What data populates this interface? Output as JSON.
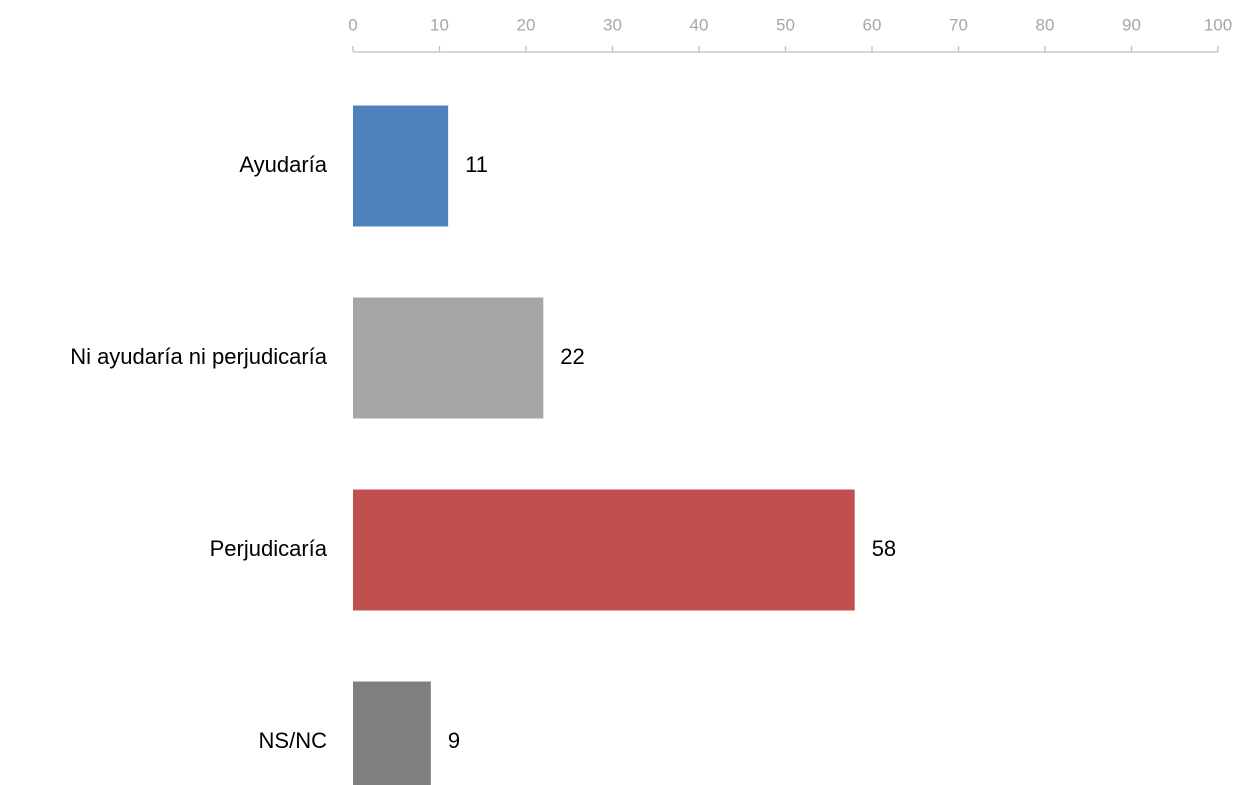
{
  "chart_data": {
    "type": "bar",
    "orientation": "horizontal",
    "categories": [
      "Ayudaría",
      "Ni ayudaría ni perjudicaría",
      "Perjudicaría",
      "NS/NC"
    ],
    "values": [
      11,
      22,
      58,
      9
    ],
    "colors": [
      "#4f81bd",
      "#a6a6a6",
      "#c0504d",
      "#7f7f7f"
    ],
    "x_axis": {
      "position": "top",
      "range": [
        0,
        100
      ],
      "ticks": [
        "0",
        "10",
        "20",
        "30",
        "40",
        "50",
        "60",
        "70",
        "80",
        "90",
        "100"
      ]
    },
    "title": "",
    "xlabel": "",
    "ylabel": "",
    "grid": false,
    "legend": false
  }
}
